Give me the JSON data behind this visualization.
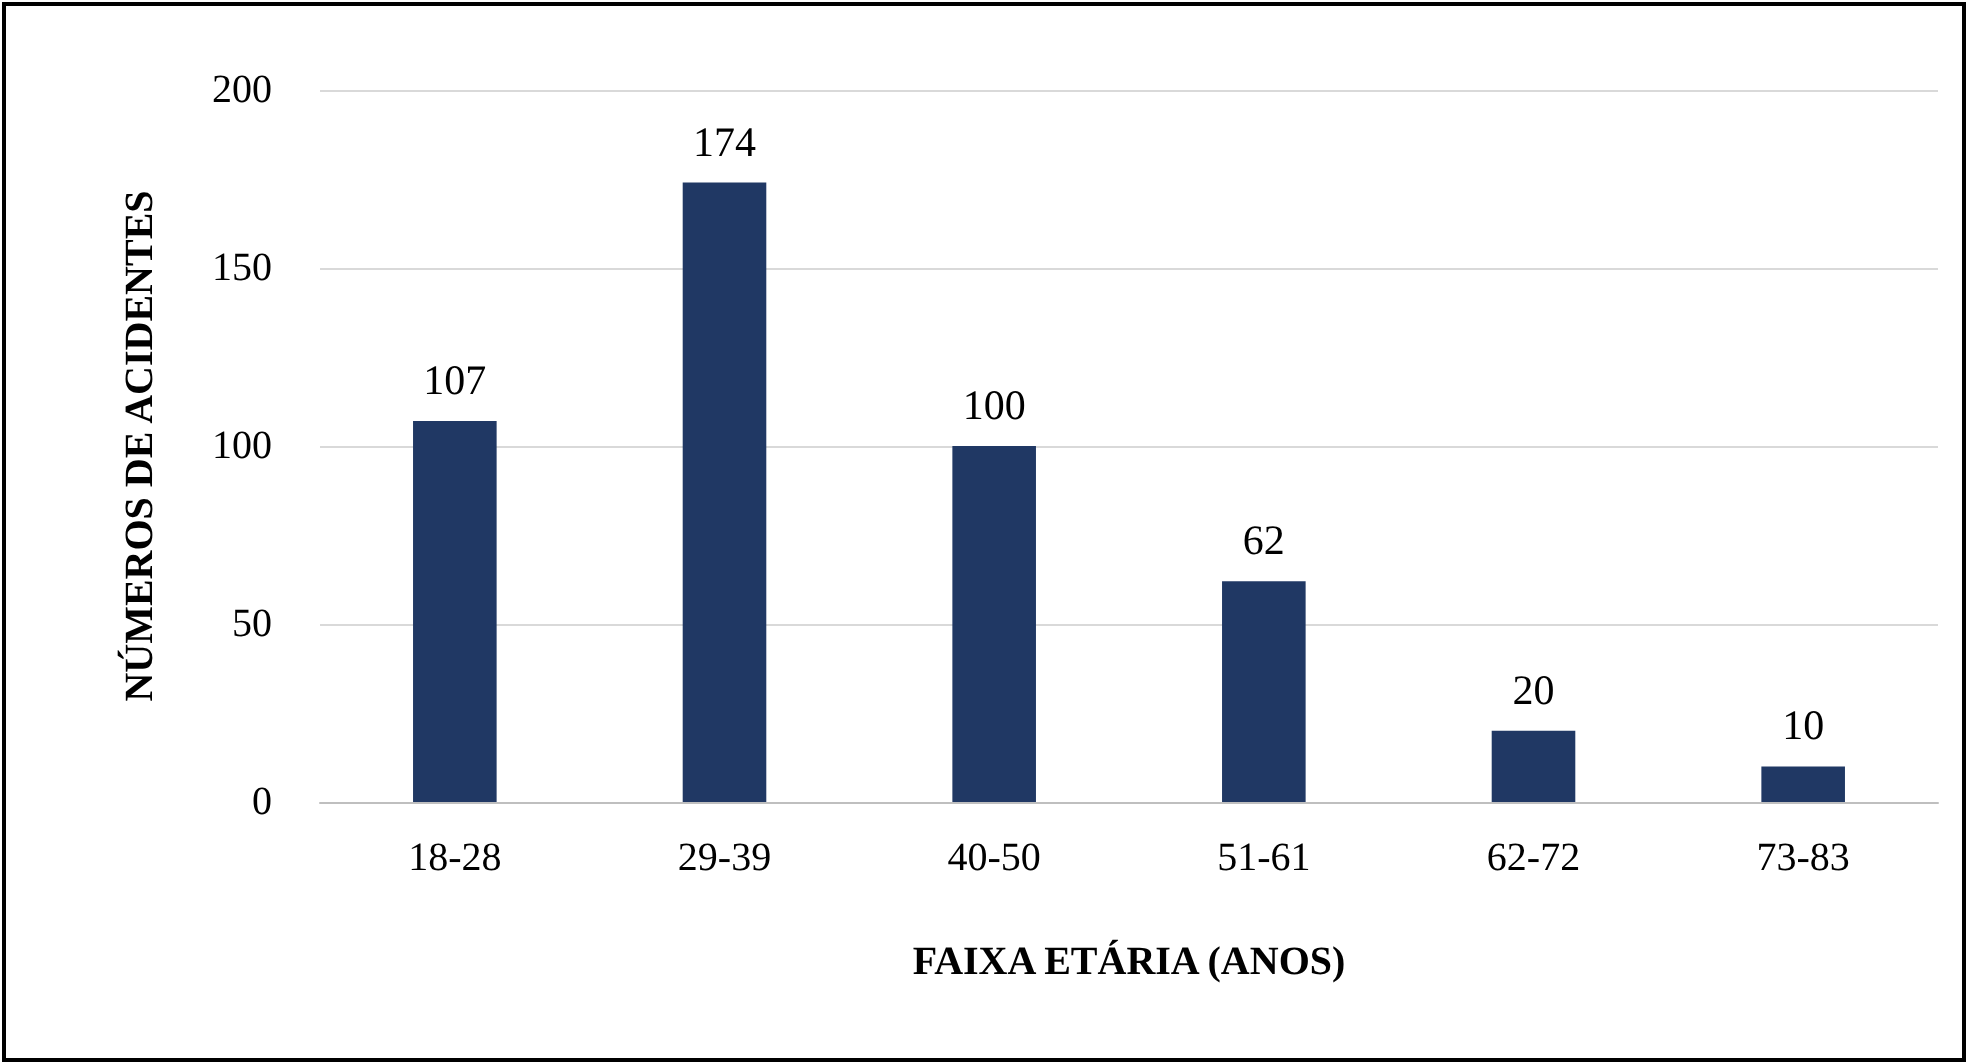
{
  "chart_data": {
    "type": "bar",
    "xlabel": "FAIXA ETÁRIA (ANOS)",
    "ylabel": "NÚMEROS DE ACIDENTES",
    "categories": [
      "18-28",
      "29-39",
      "40-50",
      "51-61",
      "62-72",
      "73-83"
    ],
    "values": [
      107,
      174,
      100,
      62,
      20,
      10
    ],
    "color": "#203864",
    "ylim": [
      0,
      200
    ],
    "yticks": [
      0,
      50,
      100,
      150,
      200
    ],
    "grid": "y",
    "data_labels": true
  }
}
